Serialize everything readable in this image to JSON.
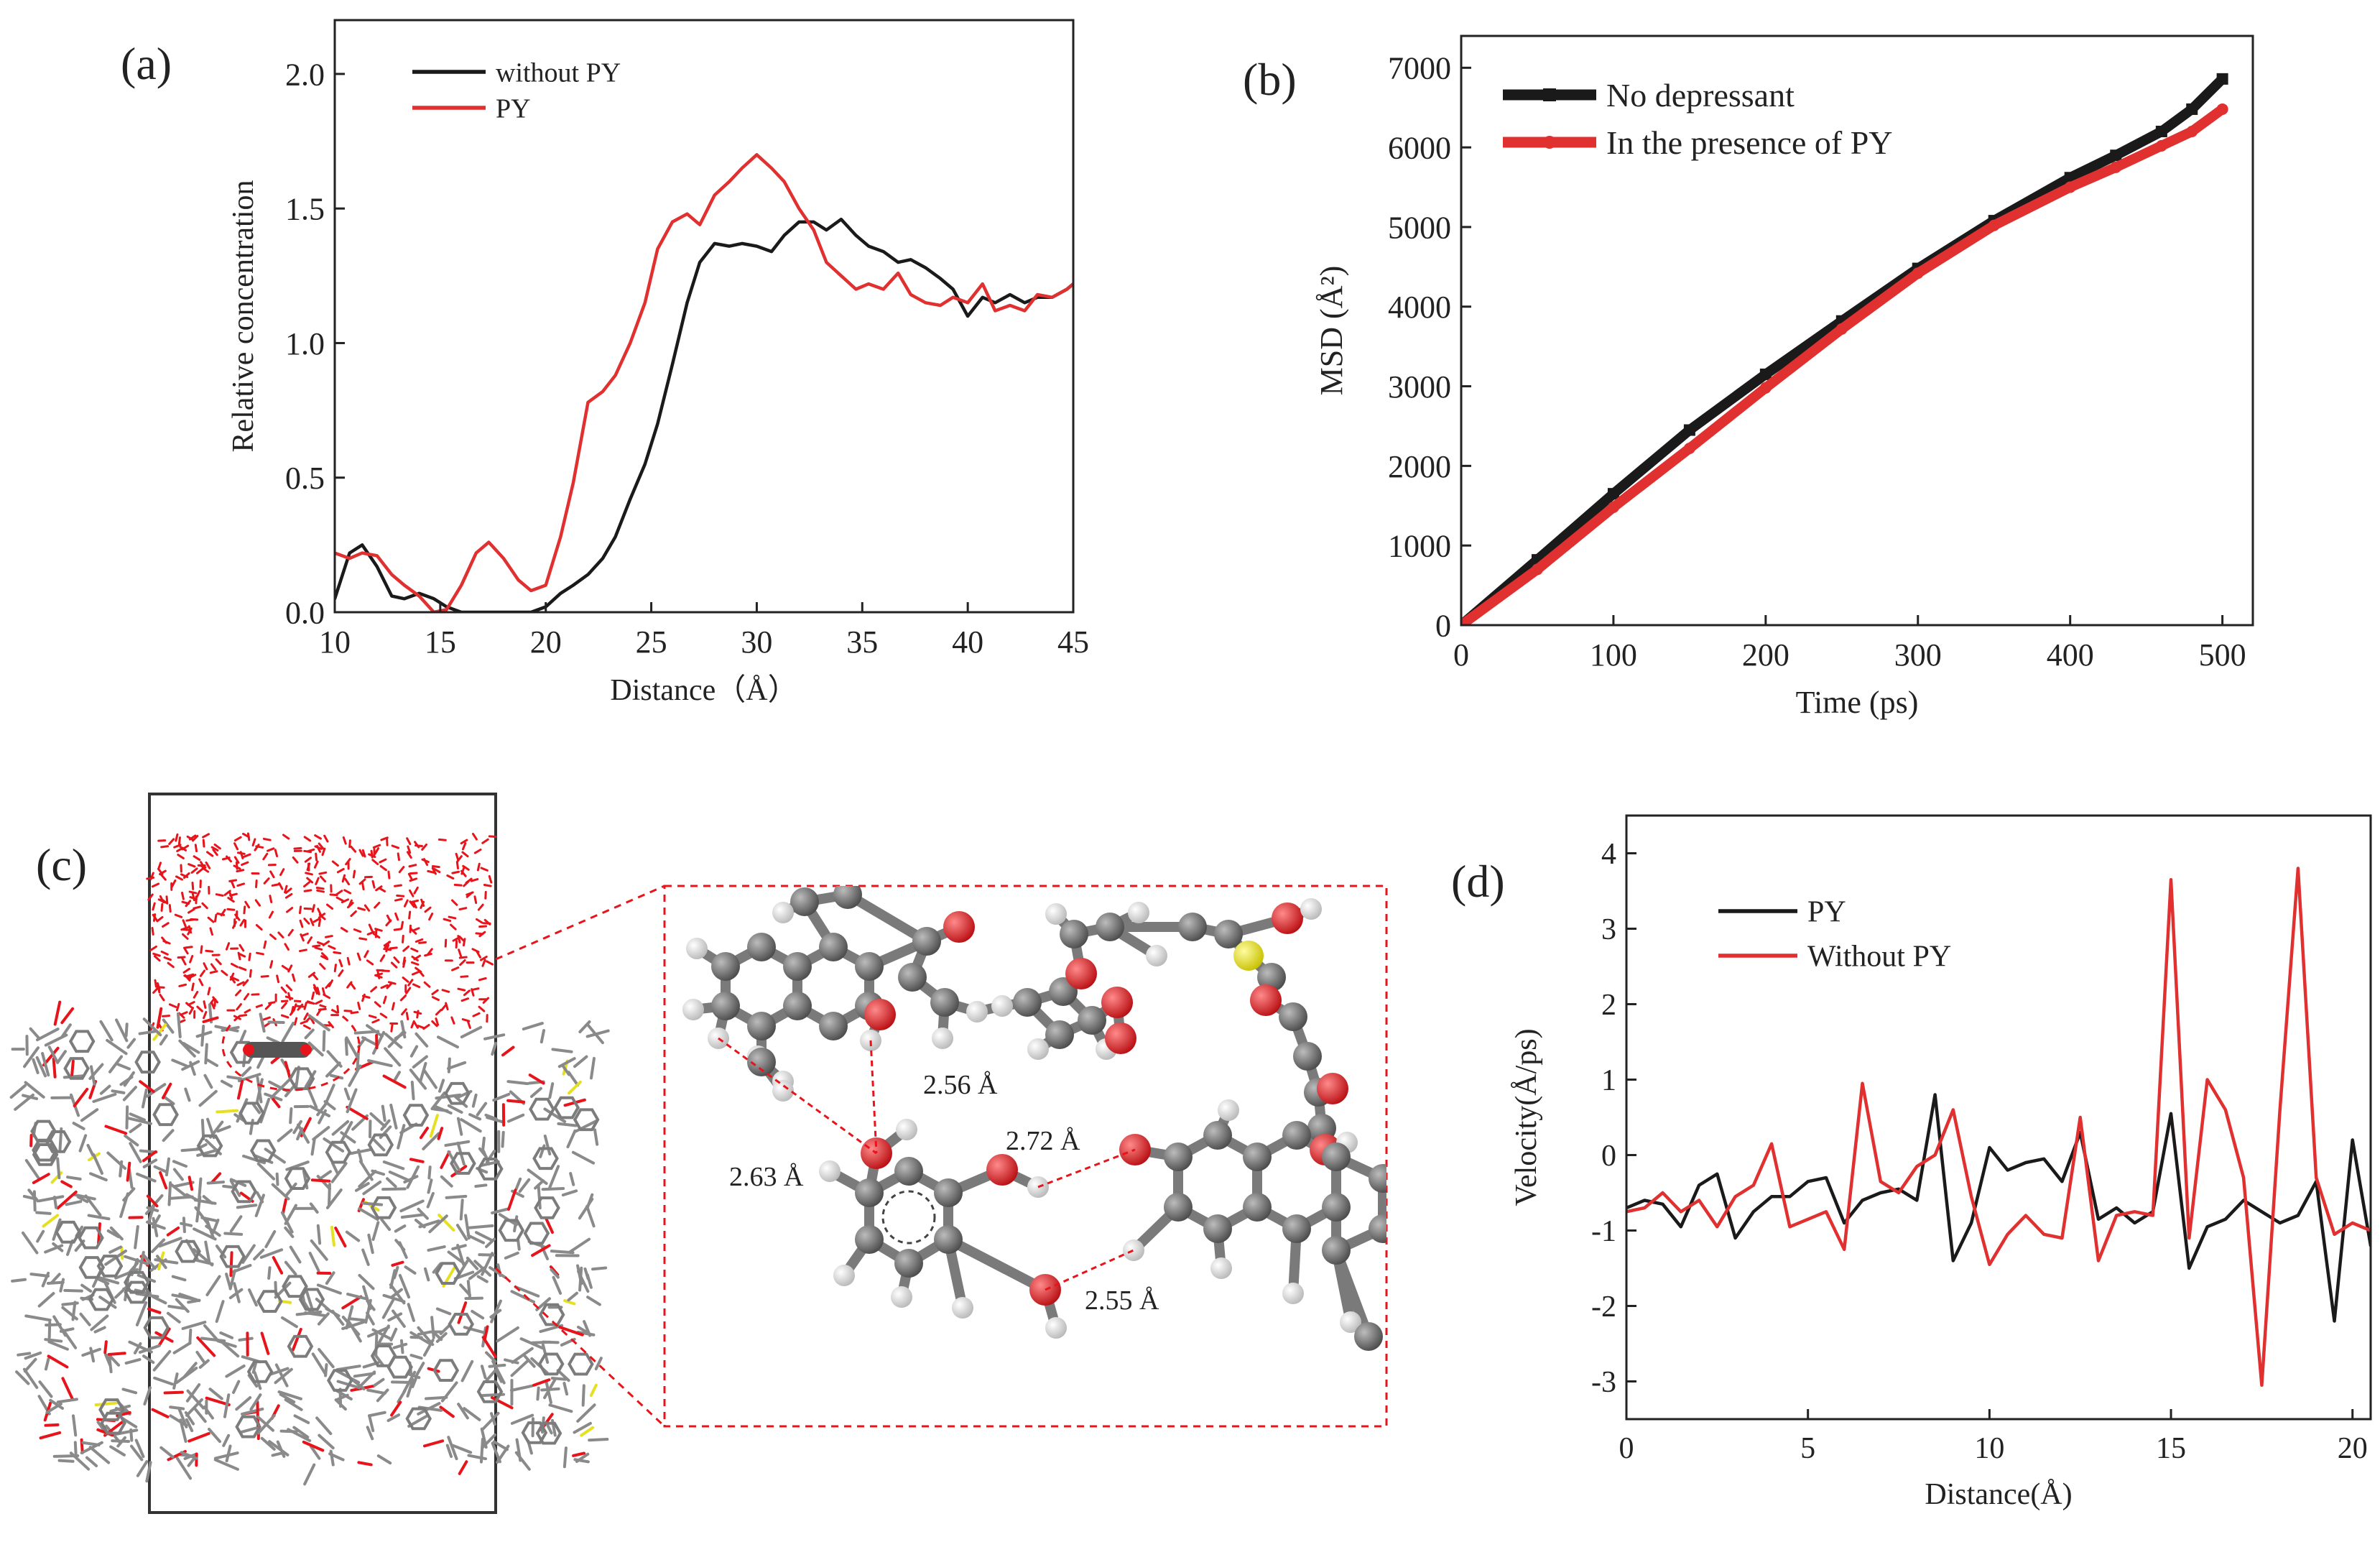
{
  "colors": {
    "black": "#1a1a1a",
    "red": "#e03030",
    "oxygen": "#e8141b",
    "carbon": "#6e6e6e",
    "hydrogen": "#f4f4f4",
    "sulfur": "#e6e020"
  },
  "chart_data": [
    {
      "panel": "(a)",
      "type": "line",
      "title": "",
      "xlabel": "Distance（Å）",
      "ylabel": "Relative concentration",
      "xlim": [
        10,
        45
      ],
      "ylim": [
        0,
        2.2
      ],
      "xticks": [
        10,
        15,
        20,
        25,
        30,
        35,
        40,
        45
      ],
      "yticks": [
        0.0,
        0.5,
        1.0,
        1.5,
        2.0
      ],
      "ytick_labels": [
        "0.0",
        "0.5",
        "1.0",
        "1.5",
        "2.0"
      ],
      "legend": "top-left",
      "series": [
        {
          "name": "without PY",
          "color": "#1a1a1a",
          "x": [
            10,
            10.7,
            11.3,
            12,
            12.7,
            13.3,
            14,
            14.7,
            15.3,
            16,
            16.7,
            17.3,
            18,
            18.7,
            19.3,
            20,
            20.7,
            21.3,
            22,
            22.7,
            23.3,
            24,
            24.7,
            25.3,
            26,
            26.7,
            27.3,
            28,
            28.7,
            29.3,
            30,
            30.7,
            31.3,
            32,
            32.7,
            33.3,
            34,
            34.7,
            35.3,
            36,
            36.7,
            37.3,
            38,
            38.7,
            39.3,
            40,
            40.7,
            41.3,
            42,
            42.7,
            43.3,
            44,
            44.7,
            45
          ],
          "y": [
            0.05,
            0.22,
            0.25,
            0.17,
            0.06,
            0.05,
            0.07,
            0.05,
            0.02,
            0.0,
            0.0,
            0.0,
            0.0,
            0.0,
            0.0,
            0.02,
            0.07,
            0.1,
            0.14,
            0.2,
            0.28,
            0.42,
            0.55,
            0.7,
            0.92,
            1.15,
            1.3,
            1.37,
            1.36,
            1.37,
            1.36,
            1.34,
            1.4,
            1.45,
            1.45,
            1.42,
            1.46,
            1.4,
            1.36,
            1.34,
            1.3,
            1.31,
            1.28,
            1.24,
            1.2,
            1.1,
            1.17,
            1.15,
            1.18,
            1.15,
            1.17,
            1.17,
            1.2,
            1.22
          ]
        },
        {
          "name": "PY",
          "color": "#e03030",
          "x": [
            10,
            10.7,
            11.3,
            12,
            12.7,
            13.3,
            14,
            14.7,
            15.3,
            16,
            16.7,
            17.3,
            18,
            18.7,
            19.3,
            20,
            20.7,
            21.3,
            22,
            22.7,
            23.3,
            24,
            24.7,
            25.3,
            26,
            26.7,
            27.3,
            28,
            28.7,
            29.3,
            30,
            30.7,
            31.3,
            32,
            32.7,
            33.3,
            34,
            34.7,
            35.3,
            36,
            36.7,
            37.3,
            38,
            38.7,
            39.3,
            40,
            40.7,
            41.3,
            42,
            42.7,
            43.3,
            44,
            44.7,
            45
          ],
          "y": [
            0.22,
            0.2,
            0.22,
            0.21,
            0.14,
            0.1,
            0.06,
            0.0,
            0.01,
            0.1,
            0.22,
            0.26,
            0.2,
            0.12,
            0.08,
            0.1,
            0.28,
            0.48,
            0.78,
            0.82,
            0.88,
            1.0,
            1.15,
            1.35,
            1.45,
            1.48,
            1.44,
            1.55,
            1.6,
            1.65,
            1.7,
            1.65,
            1.6,
            1.5,
            1.42,
            1.3,
            1.25,
            1.2,
            1.22,
            1.2,
            1.26,
            1.18,
            1.15,
            1.14,
            1.17,
            1.15,
            1.22,
            1.12,
            1.14,
            1.12,
            1.18,
            1.17,
            1.2,
            1.22
          ]
        }
      ]
    },
    {
      "panel": "(b)",
      "type": "line",
      "title": "",
      "xlabel": "Time (ps)",
      "ylabel": "MSD (Å²)",
      "xlim": [
        0,
        520
      ],
      "ylim": [
        0,
        7400
      ],
      "xticks": [
        0,
        100,
        200,
        300,
        400,
        500
      ],
      "yticks": [
        0,
        1000,
        2000,
        3000,
        4000,
        5000,
        6000,
        7000
      ],
      "legend": "top-left",
      "series": [
        {
          "name": "No depressant",
          "color": "#1a1a1a",
          "marker": "square",
          "x": [
            0,
            50,
            100,
            150,
            200,
            250,
            300,
            350,
            400,
            430,
            460,
            480,
            500
          ],
          "y": [
            0,
            820,
            1650,
            2450,
            3150,
            3820,
            4480,
            5080,
            5620,
            5900,
            6200,
            6480,
            6860
          ]
        },
        {
          "name": "In the presence of PY",
          "color": "#e03030",
          "marker": "circle",
          "x": [
            0,
            50,
            100,
            150,
            200,
            250,
            300,
            350,
            400,
            430,
            460,
            480,
            500
          ],
          "y": [
            0,
            700,
            1480,
            2220,
            2980,
            3720,
            4420,
            5020,
            5500,
            5750,
            6020,
            6200,
            6480
          ]
        }
      ]
    },
    {
      "panel": "(d)",
      "type": "line",
      "title": "",
      "xlabel": "Distance(Å)",
      "ylabel": "Velocity(Å/ps)",
      "xlim": [
        0,
        20.5
      ],
      "ylim": [
        -3.5,
        4.5
      ],
      "xticks": [
        0,
        5,
        10,
        15,
        20
      ],
      "yticks": [
        4,
        3,
        2,
        1,
        0,
        -1,
        -2,
        -3
      ],
      "legend": "top-left",
      "series": [
        {
          "name": "PY",
          "color": "#1a1a1a",
          "x": [
            0,
            0.5,
            1.0,
            1.5,
            2.0,
            2.5,
            3.0,
            3.5,
            4.0,
            4.5,
            5.0,
            5.5,
            6.0,
            6.5,
            7.0,
            7.5,
            8.0,
            8.5,
            9.0,
            9.5,
            10.0,
            10.5,
            11.0,
            11.5,
            12.0,
            12.5,
            13.0,
            13.5,
            14.0,
            14.5,
            15.0,
            15.5,
            16.0,
            16.5,
            17.0,
            17.5,
            18.0,
            18.5,
            19.0,
            19.5,
            20.0,
            20.5
          ],
          "y": [
            -0.7,
            -0.6,
            -0.65,
            -0.95,
            -0.4,
            -0.25,
            -1.1,
            -0.75,
            -0.55,
            -0.55,
            -0.35,
            -0.3,
            -0.9,
            -0.6,
            -0.5,
            -0.45,
            -0.6,
            0.8,
            -1.4,
            -0.9,
            0.1,
            -0.2,
            -0.1,
            -0.05,
            -0.35,
            0.3,
            -0.85,
            -0.7,
            -0.9,
            -0.75,
            0.55,
            -1.5,
            -0.95,
            -0.85,
            -0.6,
            -0.75,
            -0.9,
            -0.8,
            -0.35,
            -2.2,
            0.2,
            -1.2
          ]
        },
        {
          "name": "Without PY",
          "color": "#e03030",
          "x": [
            0,
            0.5,
            1.0,
            1.5,
            2.0,
            2.5,
            3.0,
            3.5,
            4.0,
            4.5,
            5.0,
            5.5,
            6.0,
            6.5,
            7.0,
            7.5,
            8.0,
            8.5,
            9.0,
            9.5,
            10.0,
            10.5,
            11.0,
            11.5,
            12.0,
            12.5,
            13.0,
            13.5,
            14.0,
            14.5,
            15.0,
            15.5,
            16.0,
            16.5,
            17.0,
            17.5,
            18.0,
            18.5,
            19.0,
            19.5,
            20.0,
            20.5
          ],
          "y": [
            -0.75,
            -0.7,
            -0.5,
            -0.75,
            -0.6,
            -0.95,
            -0.55,
            -0.4,
            0.15,
            -0.95,
            -0.85,
            -0.75,
            -1.25,
            0.95,
            -0.35,
            -0.5,
            -0.15,
            0.0,
            0.6,
            -0.55,
            -1.45,
            -1.05,
            -0.8,
            -1.05,
            -1.1,
            0.5,
            -1.4,
            -0.8,
            -0.75,
            -0.8,
            3.65,
            -1.1,
            1.0,
            0.6,
            -0.3,
            -3.05,
            0.6,
            3.8,
            -0.3,
            -1.05,
            -0.9,
            -1.0
          ]
        }
      ]
    }
  ],
  "panel_c": {
    "label": "(c)",
    "distances": [
      "2.56 Å",
      "2.63 Å",
      "2.72 Å",
      "2.55 Å"
    ]
  }
}
